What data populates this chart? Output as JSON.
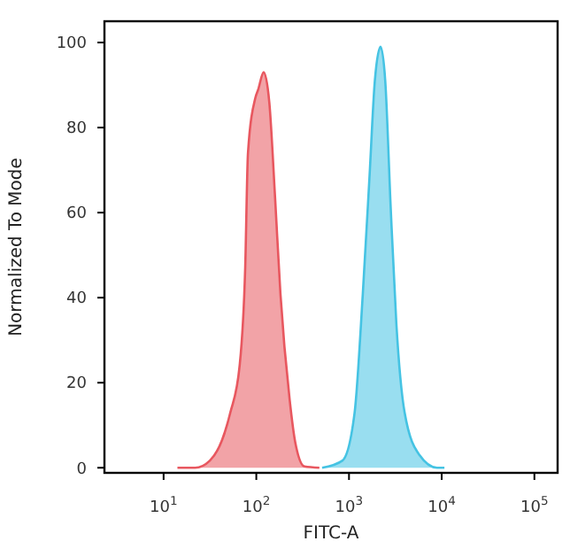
{
  "chart_data": {
    "type": "area",
    "xlabel": "FITC-A",
    "ylabel": "Normalized To Mode",
    "log": "x",
    "grid": false,
    "xlim": [
      2.3,
      178000
    ],
    "ylim": [
      -1.2,
      105
    ],
    "xticks": [
      {
        "value": 10,
        "label": "10$^{1}$"
      },
      {
        "value": 100,
        "label": "10$^{2}$"
      },
      {
        "value": 1000,
        "label": "10$^{3}$"
      },
      {
        "value": 10000,
        "label": "10$^{4}$"
      },
      {
        "value": 100000,
        "label": "10$^{5}$"
      }
    ],
    "yticks": [
      0,
      20,
      40,
      60,
      80,
      100
    ],
    "series": [
      {
        "color": "#e8575f",
        "x": [
          14.1,
          21.9,
          31.6,
          42.7,
          52.5,
          66.1,
          75.9,
          81.3,
          97.7,
          105,
          120,
          138,
          159,
          182,
          229,
          263,
          331,
          479
        ],
        "values": [
          0,
          0,
          1.7,
          6.5,
          13,
          24,
          47,
          74,
          87,
          89,
          93,
          86,
          64,
          41,
          16,
          6,
          0.3,
          0
        ]
      },
      {
        "color": "#45c3e3",
        "x": [
          513,
          851,
          1150,
          1410,
          1660,
          1900,
          2190,
          2460,
          2820,
          3240,
          3980,
          5750,
          8910,
          10700
        ],
        "values": [
          0,
          1.7,
          13,
          41,
          68,
          91,
          99,
          91,
          61,
          34,
          13,
          3,
          0,
          0
        ]
      }
    ]
  }
}
